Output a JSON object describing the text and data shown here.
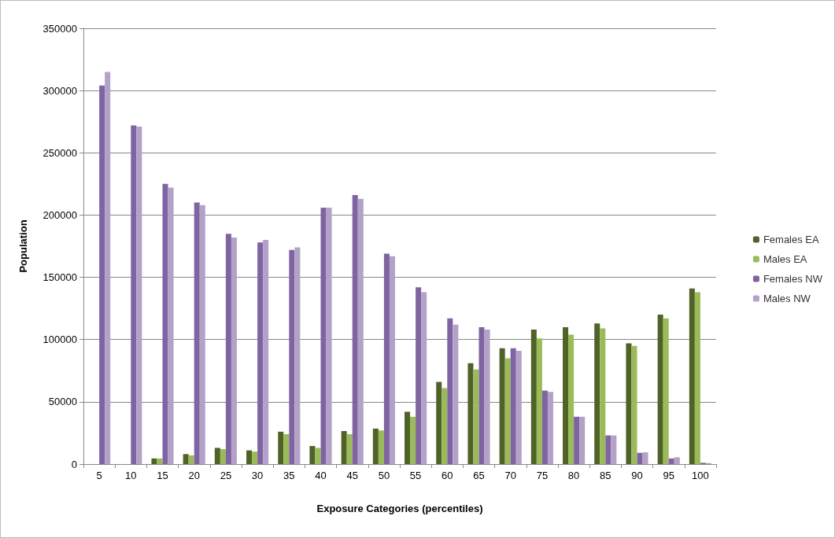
{
  "chart_data": {
    "type": "bar",
    "xlabel": "Exposure Categories (percentiles)",
    "ylabel": "Population",
    "categories": [
      "5",
      "10",
      "15",
      "20",
      "25",
      "30",
      "35",
      "40",
      "45",
      "50",
      "55",
      "60",
      "65",
      "70",
      "75",
      "80",
      "85",
      "90",
      "95",
      "100"
    ],
    "series": [
      {
        "name": "Females EA",
        "color": "#4f6228",
        "values": [
          0,
          0,
          4500,
          8000,
          13000,
          11000,
          26000,
          14500,
          26500,
          28500,
          42000,
          66000,
          81000,
          93000,
          108000,
          110000,
          113000,
          97000,
          120000,
          141000
        ]
      },
      {
        "name": "Males EA",
        "color": "#9bbb59",
        "values": [
          0,
          0,
          4500,
          7000,
          12000,
          10000,
          24000,
          13000,
          24000,
          27000,
          38000,
          61000,
          76000,
          85000,
          101000,
          104000,
          109000,
          95000,
          117000,
          138000
        ]
      },
      {
        "name": "Females NW",
        "color": "#8064a2",
        "values": [
          304000,
          272000,
          225000,
          210000,
          185000,
          178000,
          172000,
          206000,
          216000,
          169000,
          142000,
          117000,
          110000,
          93000,
          59000,
          38000,
          23000,
          9000,
          4500,
          1000
        ]
      },
      {
        "name": "Males NW",
        "color": "#b3a2c7",
        "values": [
          315000,
          271000,
          222000,
          208000,
          182000,
          180000,
          174000,
          206000,
          213000,
          167000,
          138000,
          112000,
          108000,
          91000,
          58000,
          38000,
          23000,
          9500,
          5500,
          800
        ]
      }
    ],
    "ylim": [
      0,
      350000
    ],
    "yticks": [
      0,
      50000,
      100000,
      150000,
      200000,
      250000,
      300000,
      350000
    ],
    "grid": "y",
    "legend": "right"
  }
}
